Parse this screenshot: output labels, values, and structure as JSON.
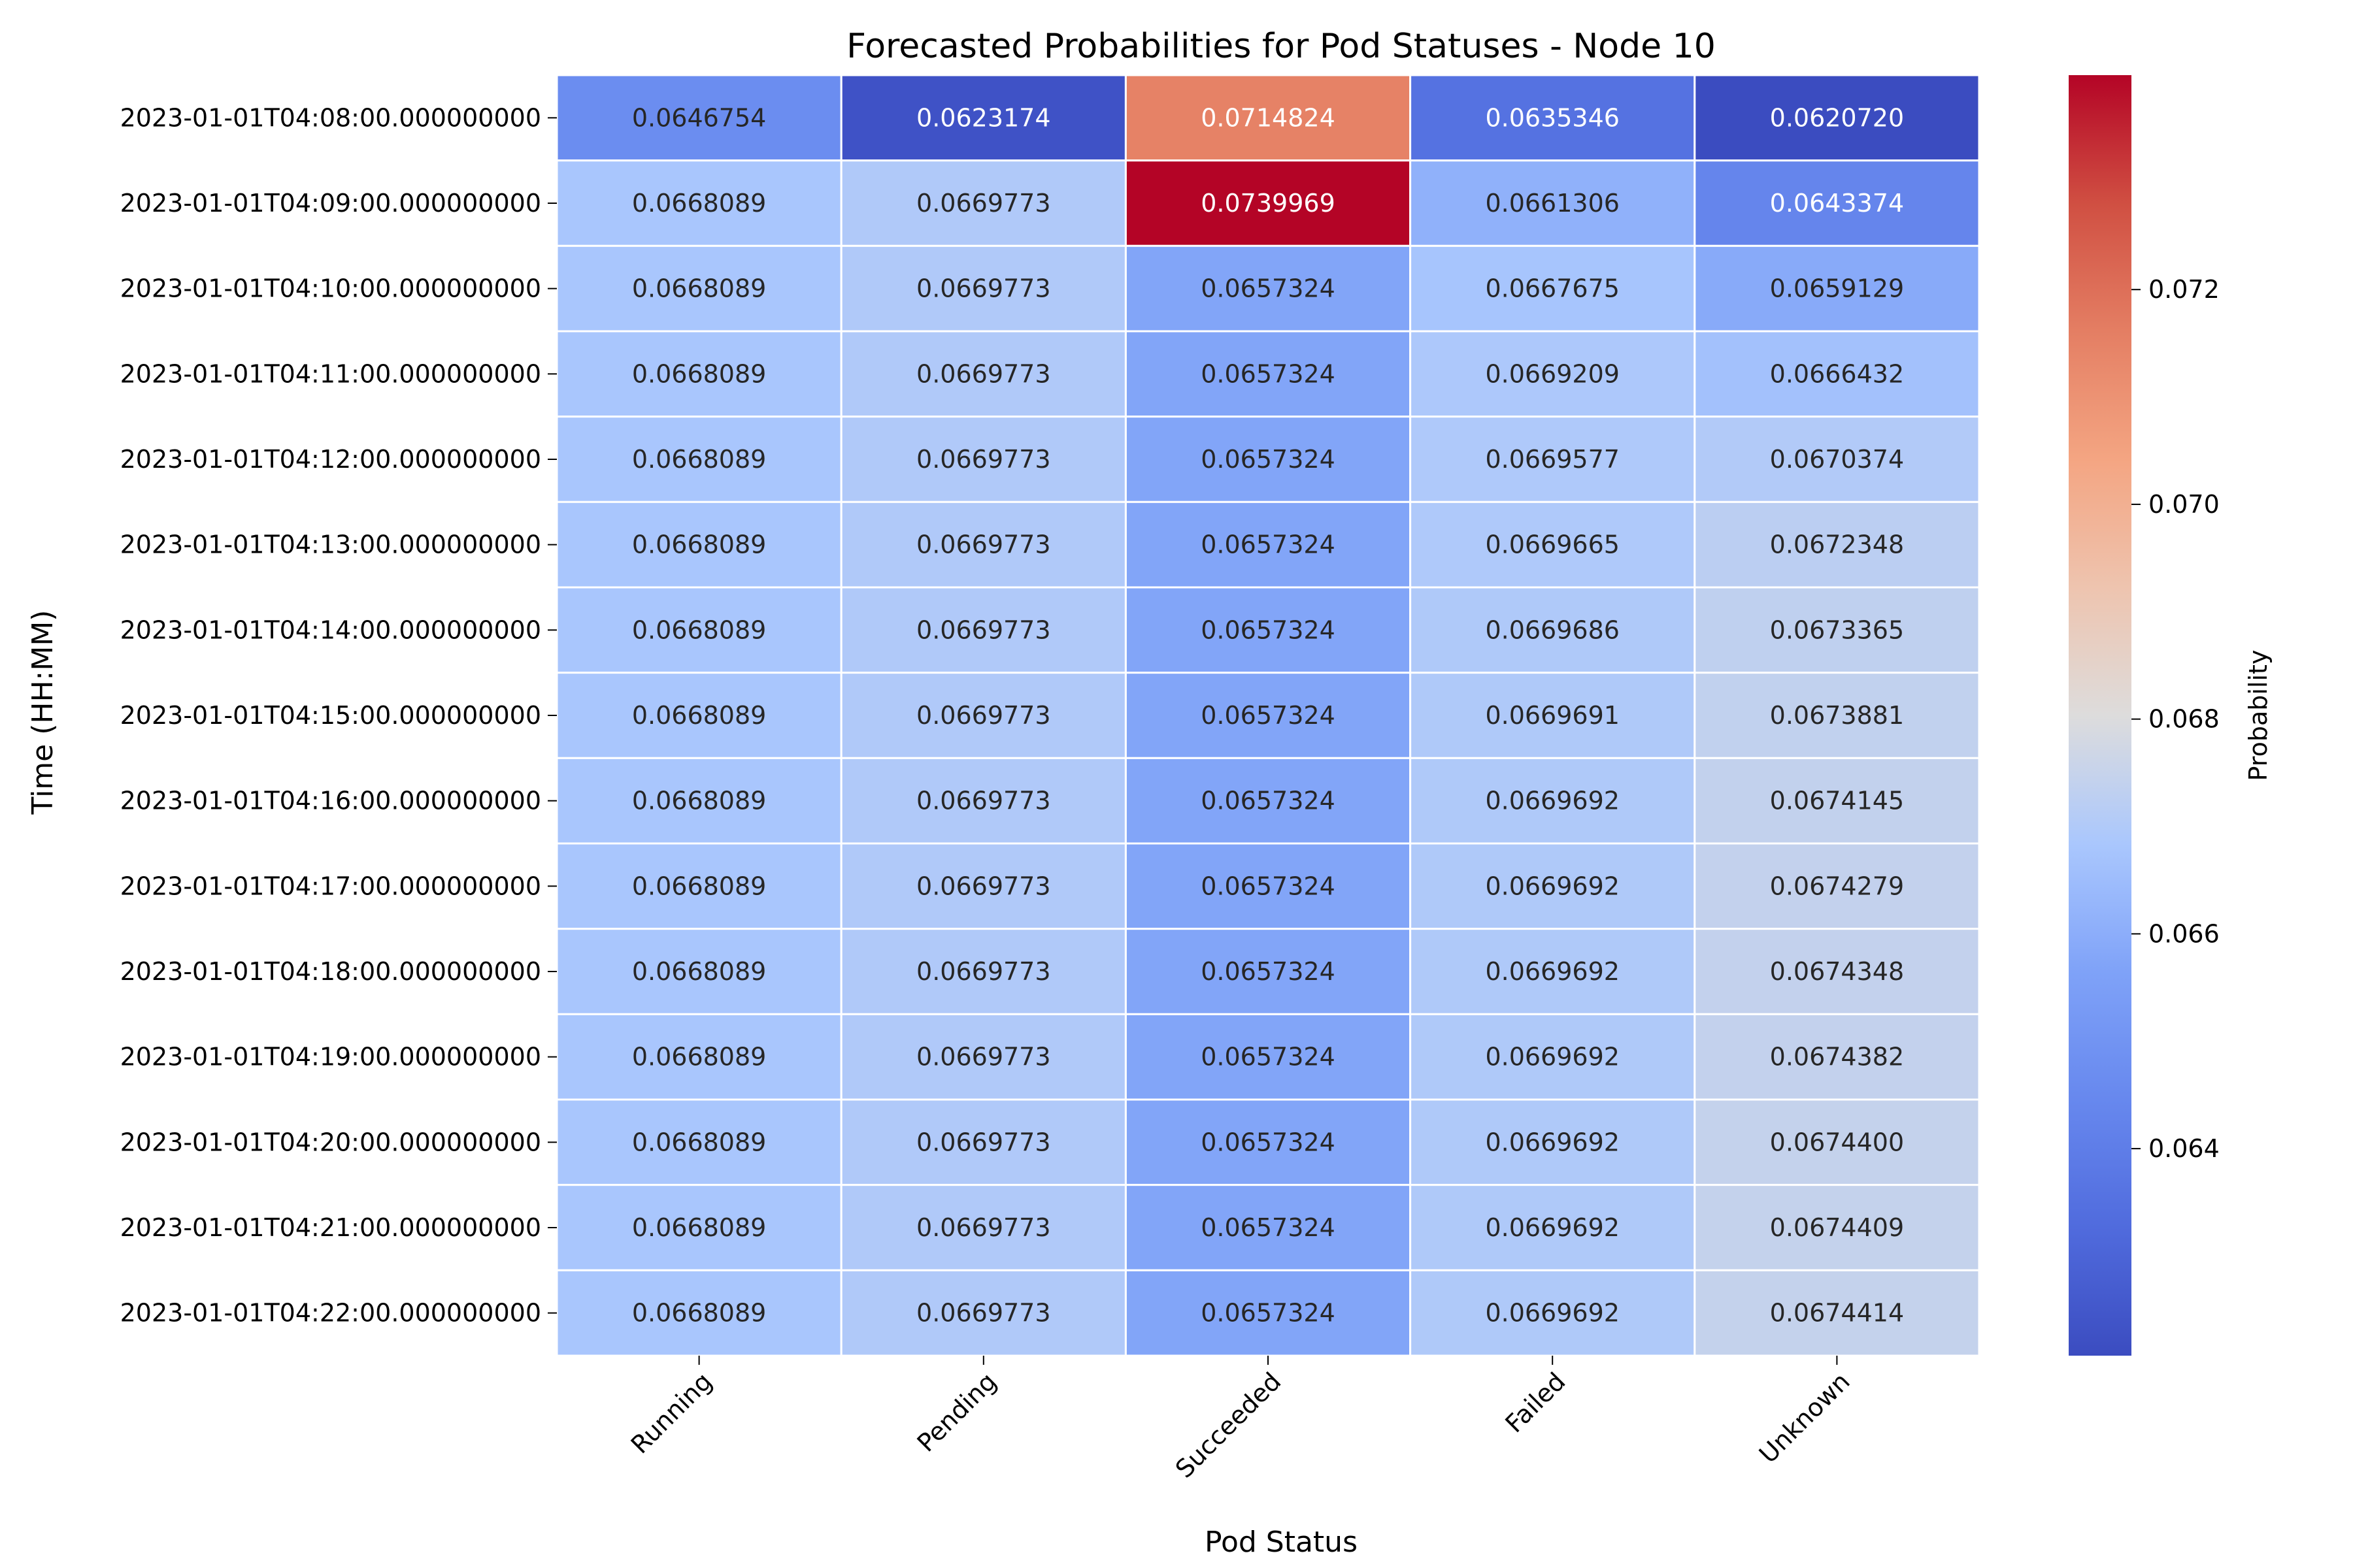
{
  "chart_data": {
    "type": "heatmap",
    "title": "Forecasted Probabilities for Pod Statuses - Node 10",
    "xlabel": "Pod Status",
    "ylabel": "Time (HH:MM)",
    "colorbar_label": "Probability",
    "colormap": "coolwarm",
    "color_range": [
      0.062072,
      0.0739969
    ],
    "colorbar_ticks": [
      "0.064",
      "0.066",
      "0.068",
      "0.070",
      "0.072"
    ],
    "colorbar_tick_values": [
      0.064,
      0.066,
      0.068,
      0.07,
      0.072
    ],
    "columns": [
      "Running",
      "Pending",
      "Succeeded",
      "Failed",
      "Unknown"
    ],
    "rows": [
      "2023-01-01T04:08:00.000000000",
      "2023-01-01T04:09:00.000000000",
      "2023-01-01T04:10:00.000000000",
      "2023-01-01T04:11:00.000000000",
      "2023-01-01T04:12:00.000000000",
      "2023-01-01T04:13:00.000000000",
      "2023-01-01T04:14:00.000000000",
      "2023-01-01T04:15:00.000000000",
      "2023-01-01T04:16:00.000000000",
      "2023-01-01T04:17:00.000000000",
      "2023-01-01T04:18:00.000000000",
      "2023-01-01T04:19:00.000000000",
      "2023-01-01T04:20:00.000000000",
      "2023-01-01T04:21:00.000000000",
      "2023-01-01T04:22:00.000000000"
    ],
    "values": [
      [
        "0.0646754",
        "0.0623174",
        "0.0714824",
        "0.0635346",
        "0.0620720"
      ],
      [
        "0.0668089",
        "0.0669773",
        "0.0739969",
        "0.0661306",
        "0.0643374"
      ],
      [
        "0.0668089",
        "0.0669773",
        "0.0657324",
        "0.0667675",
        "0.0659129"
      ],
      [
        "0.0668089",
        "0.0669773",
        "0.0657324",
        "0.0669209",
        "0.0666432"
      ],
      [
        "0.0668089",
        "0.0669773",
        "0.0657324",
        "0.0669577",
        "0.0670374"
      ],
      [
        "0.0668089",
        "0.0669773",
        "0.0657324",
        "0.0669665",
        "0.0672348"
      ],
      [
        "0.0668089",
        "0.0669773",
        "0.0657324",
        "0.0669686",
        "0.0673365"
      ],
      [
        "0.0668089",
        "0.0669773",
        "0.0657324",
        "0.0669691",
        "0.0673881"
      ],
      [
        "0.0668089",
        "0.0669773",
        "0.0657324",
        "0.0669692",
        "0.0674145"
      ],
      [
        "0.0668089",
        "0.0669773",
        "0.0657324",
        "0.0669692",
        "0.0674279"
      ],
      [
        "0.0668089",
        "0.0669773",
        "0.0657324",
        "0.0669692",
        "0.0674348"
      ],
      [
        "0.0668089",
        "0.0669773",
        "0.0657324",
        "0.0669692",
        "0.0674382"
      ],
      [
        "0.0668089",
        "0.0669773",
        "0.0657324",
        "0.0669692",
        "0.0674400"
      ],
      [
        "0.0668089",
        "0.0669773",
        "0.0657324",
        "0.0669692",
        "0.0674409"
      ],
      [
        "0.0668089",
        "0.0669773",
        "0.0657324",
        "0.0669692",
        "0.0674414"
      ]
    ]
  }
}
